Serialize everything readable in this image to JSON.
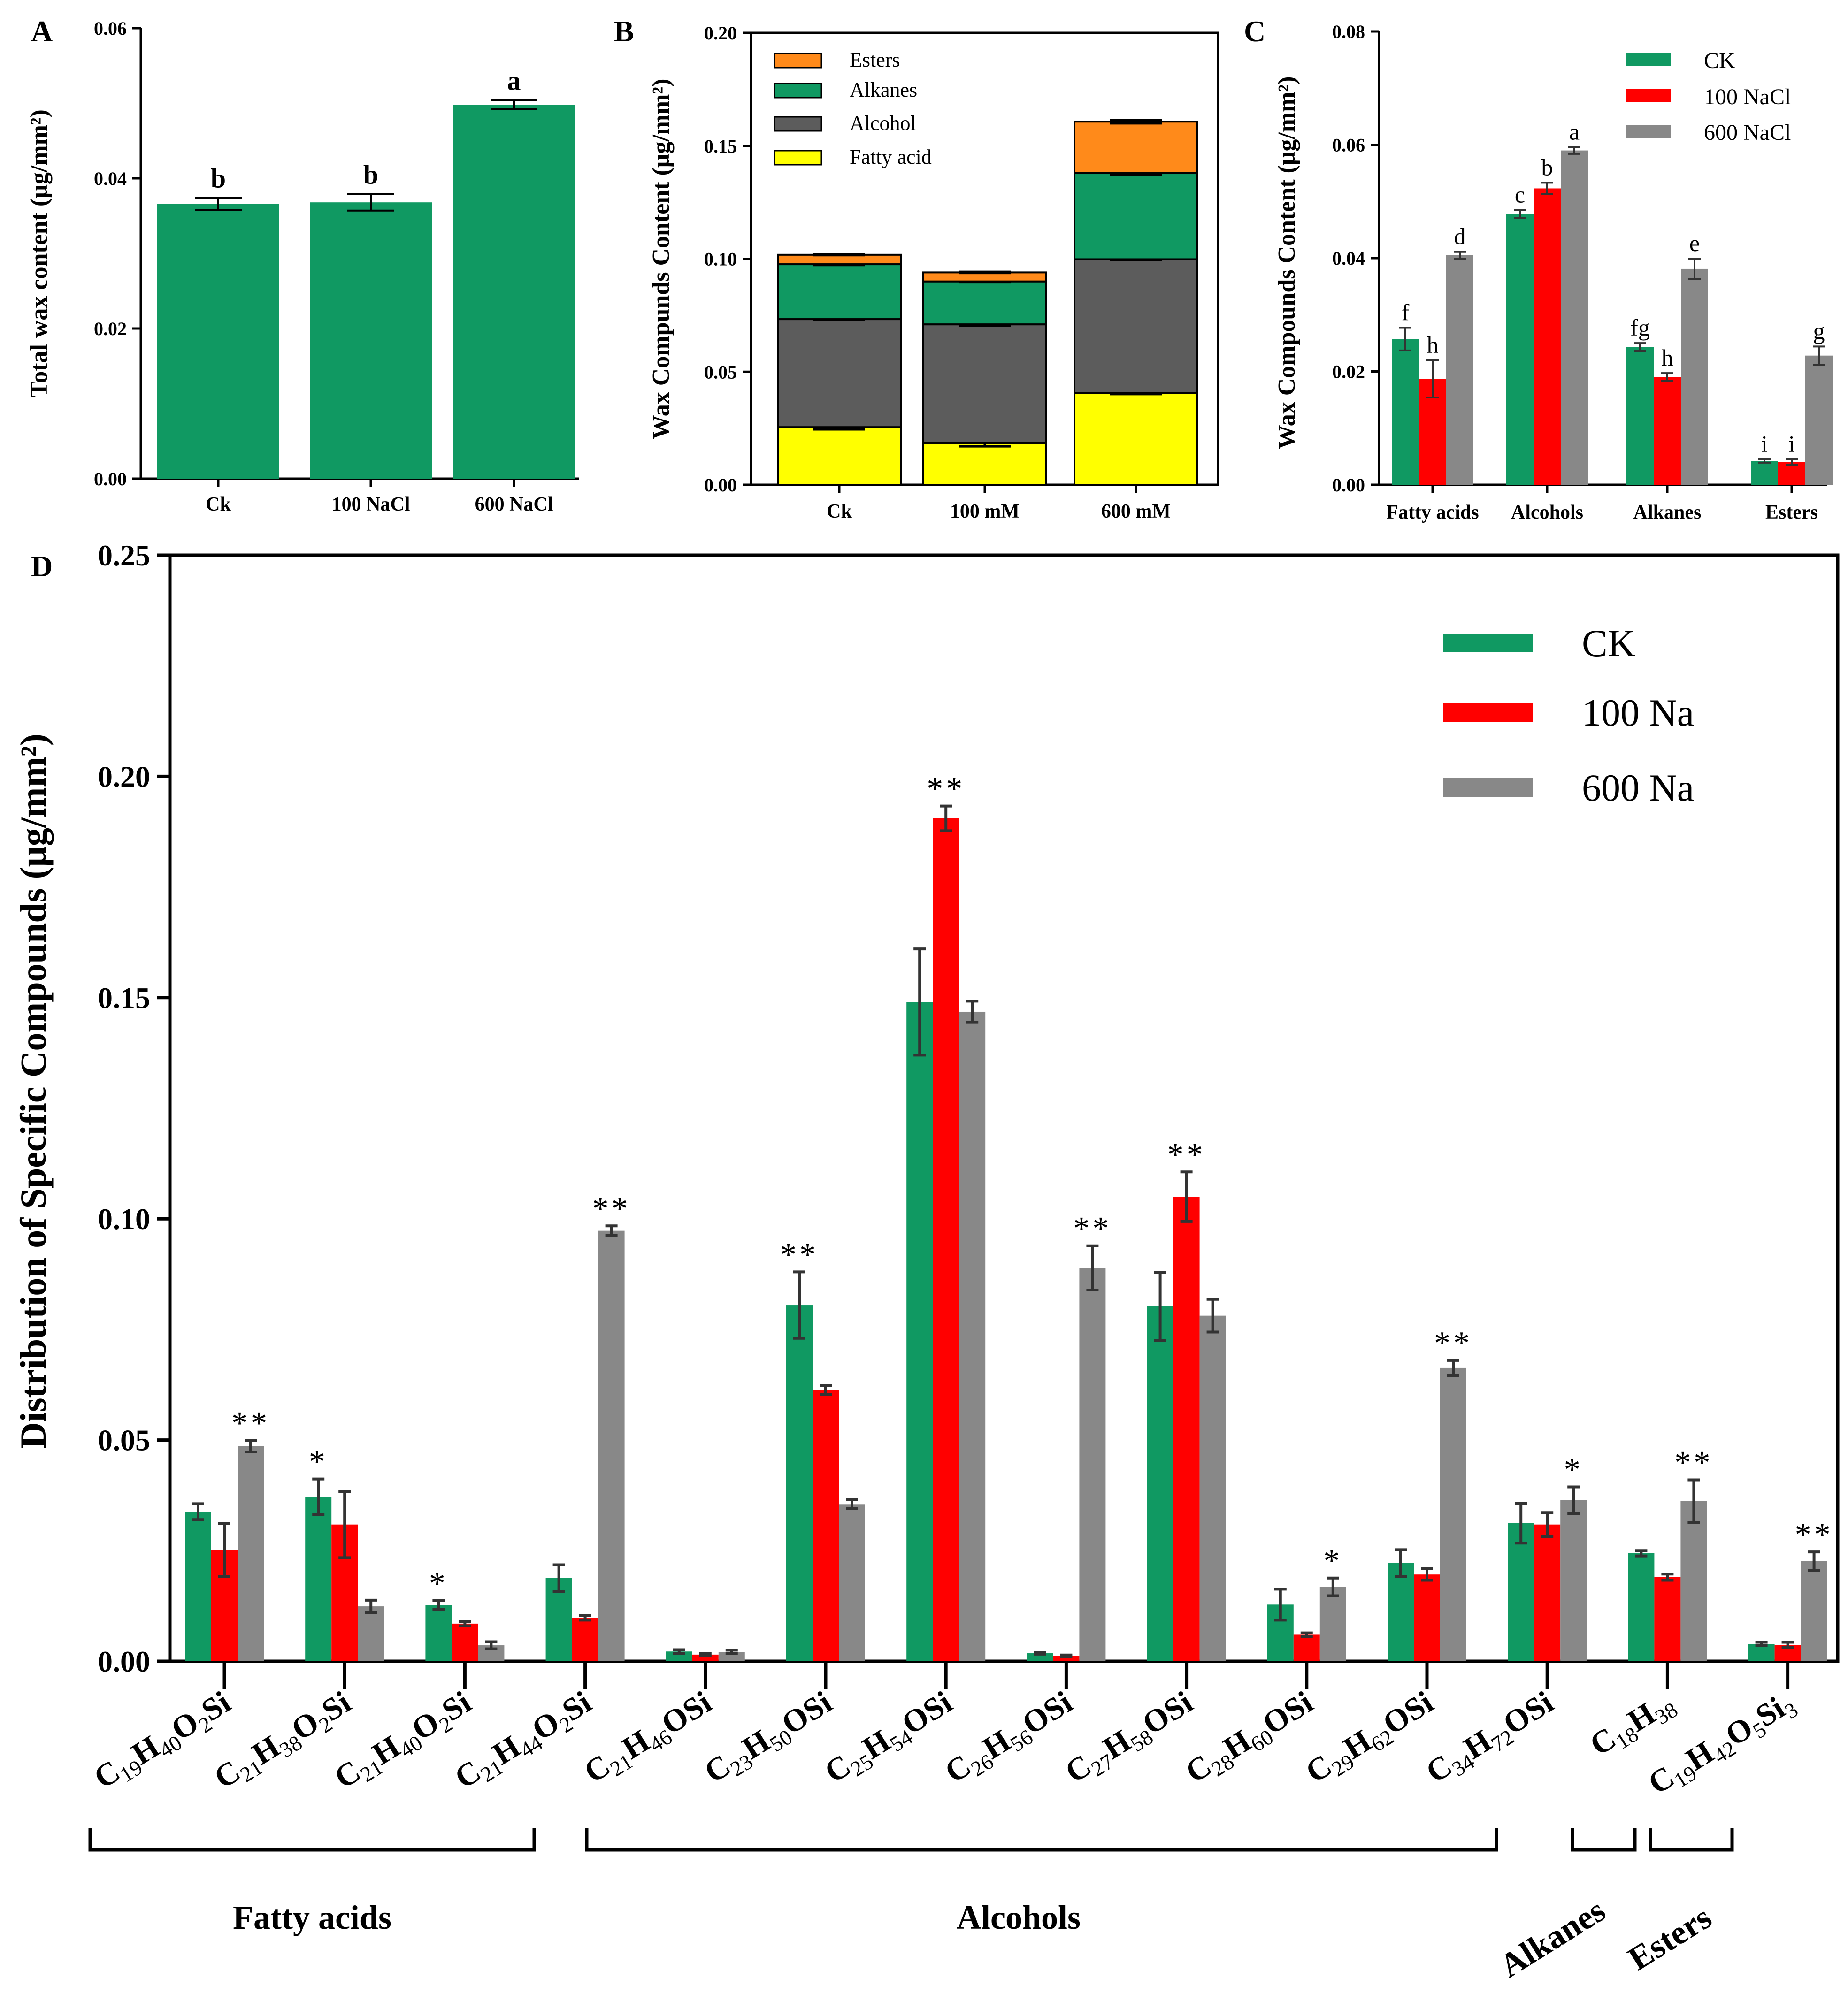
{
  "colors": {
    "green": "#109962",
    "red": "#ff0000",
    "gray": "#888888",
    "dark": "#5c5c5c",
    "yellow": "#ffff00",
    "orange": "#ff8a1a",
    "black": "#000000",
    "errorbar": "#333333"
  },
  "chart_data": [
    {
      "panel": "A",
      "type": "bar",
      "title": "",
      "xlabel": "",
      "ylabel": "Total wax content (μg/mm²)",
      "ylim": [
        0,
        0.06
      ],
      "yticks": [
        "0.00",
        "0.02",
        "0.04",
        "0.06"
      ],
      "categories": [
        "Ck",
        "100 NaCl",
        "600 NaCl"
      ],
      "values": [
        0.0366,
        0.0368,
        0.0498
      ],
      "errors": [
        0.0008,
        0.0011,
        0.0006
      ],
      "letters": [
        "b",
        "b",
        "a"
      ],
      "color": "green"
    },
    {
      "panel": "B",
      "type": "bar",
      "stacked": true,
      "ylabel": "Wax Compunds Content (μg/mm²)",
      "ylim": [
        0,
        0.2
      ],
      "yticks": [
        "0.00",
        "0.05",
        "0.10",
        "0.15",
        "0.20"
      ],
      "categories": [
        "Ck",
        "100 mM",
        "600 mM"
      ],
      "series": [
        {
          "name": "Fatty acid",
          "color": "yellow",
          "values": [
            0.0255,
            0.0185,
            0.0405
          ],
          "errors": [
            0.002,
            0.003,
            0.0008
          ]
        },
        {
          "name": "Alcohol",
          "color": "dark",
          "values": [
            0.0478,
            0.0525,
            0.0593
          ],
          "errors": [
            0.0008,
            0.001,
            0.0007
          ]
        },
        {
          "name": "Alkanes",
          "color": "green",
          "values": [
            0.0243,
            0.019,
            0.0381
          ],
          "errors": [
            0.0007,
            0.0008,
            0.0018
          ]
        },
        {
          "name": "Esters",
          "color": "orange",
          "values": [
            0.0042,
            0.004,
            0.0228
          ],
          "errors": [
            0.0004,
            0.0005,
            0.0015
          ]
        }
      ],
      "legend_order": [
        "Esters",
        "Alkanes",
        "Alcohol",
        "Fatty acid"
      ]
    },
    {
      "panel": "C",
      "type": "bar",
      "ylabel": "Wax Compounds Content (μg/mm²)",
      "ylim": [
        0,
        0.08
      ],
      "yticks": [
        "0.00",
        "0.02",
        "0.04",
        "0.06",
        "0.08"
      ],
      "categories": [
        "Fatty acids",
        "Alcohols",
        "Alkanes",
        "Esters"
      ],
      "series": [
        {
          "name": "CK",
          "color": "green",
          "values": [
            0.0257,
            0.0478,
            0.0243,
            0.0042
          ],
          "errors": [
            0.002,
            0.0007,
            0.0007,
            0.0003
          ],
          "letters": [
            "f",
            "c",
            "fg",
            "i"
          ]
        },
        {
          "name": "100 NaCl",
          "color": "red",
          "values": [
            0.0187,
            0.0523,
            0.019,
            0.004
          ],
          "errors": [
            0.0033,
            0.001,
            0.0007,
            0.0005
          ],
          "letters": [
            "h",
            "b",
            "h",
            "i"
          ]
        },
        {
          "name": "600 NaCl",
          "color": "gray",
          "values": [
            0.0405,
            0.059,
            0.0381,
            0.0228
          ],
          "errors": [
            0.0006,
            0.0006,
            0.0018,
            0.0016
          ],
          "letters": [
            "d",
            "a",
            "e",
            "g"
          ]
        }
      ]
    },
    {
      "panel": "D",
      "type": "bar",
      "ylabel": "Distribution of Specific Compounds (μg/mm²)",
      "ylim": [
        0,
        0.25
      ],
      "yticks": [
        "0.00",
        "0.05",
        "0.10",
        "0.15",
        "0.20",
        "0.25"
      ],
      "categories": [
        [
          [
            "C",
            0
          ],
          [
            "19",
            1
          ],
          [
            "H",
            0
          ],
          [
            "40",
            1
          ],
          [
            "O",
            0
          ],
          [
            "2",
            1
          ],
          [
            "Si",
            0
          ]
        ],
        [
          [
            "C",
            0
          ],
          [
            "21",
            1
          ],
          [
            "H",
            0
          ],
          [
            "38",
            1
          ],
          [
            "O",
            0
          ],
          [
            "2",
            1
          ],
          [
            "Si",
            0
          ]
        ],
        [
          [
            "C",
            0
          ],
          [
            "21",
            1
          ],
          [
            "H",
            0
          ],
          [
            "40",
            1
          ],
          [
            "O",
            0
          ],
          [
            "2",
            1
          ],
          [
            "Si",
            0
          ]
        ],
        [
          [
            "C",
            0
          ],
          [
            "21",
            1
          ],
          [
            "H",
            0
          ],
          [
            "44",
            1
          ],
          [
            "O",
            0
          ],
          [
            "2",
            1
          ],
          [
            "Si",
            0
          ]
        ],
        [
          [
            "C",
            0
          ],
          [
            "21",
            1
          ],
          [
            "H",
            0
          ],
          [
            "46",
            1
          ],
          [
            "OSi",
            0
          ]
        ],
        [
          [
            "C",
            0
          ],
          [
            "23",
            1
          ],
          [
            "H",
            0
          ],
          [
            "50",
            1
          ],
          [
            "OSi",
            0
          ]
        ],
        [
          [
            "C",
            0
          ],
          [
            "25",
            1
          ],
          [
            "H",
            0
          ],
          [
            "54",
            1
          ],
          [
            "OSi",
            0
          ]
        ],
        [
          [
            "C",
            0
          ],
          [
            "26",
            1
          ],
          [
            "H",
            0
          ],
          [
            "56",
            1
          ],
          [
            "OSi",
            0
          ]
        ],
        [
          [
            "C",
            0
          ],
          [
            "27",
            1
          ],
          [
            "H",
            0
          ],
          [
            "58",
            1
          ],
          [
            "OSi",
            0
          ]
        ],
        [
          [
            "C",
            0
          ],
          [
            "28",
            1
          ],
          [
            "H",
            0
          ],
          [
            "60",
            1
          ],
          [
            "OSi",
            0
          ]
        ],
        [
          [
            "C",
            0
          ],
          [
            "29",
            1
          ],
          [
            "H",
            0
          ],
          [
            "62",
            1
          ],
          [
            "OSi",
            0
          ]
        ],
        [
          [
            "C",
            0
          ],
          [
            "34",
            1
          ],
          [
            "H",
            0
          ],
          [
            "72",
            1
          ],
          [
            "OSi",
            0
          ]
        ],
        [
          [
            "C",
            0
          ],
          [
            "18",
            1
          ],
          [
            "H",
            0
          ],
          [
            "38",
            1
          ]
        ],
        [
          [
            "C",
            0
          ],
          [
            "19",
            1
          ],
          [
            "H",
            0
          ],
          [
            "42",
            1
          ],
          [
            "O",
            0
          ],
          [
            "5",
            1
          ],
          [
            "Si",
            0
          ],
          [
            "3",
            1
          ]
        ]
      ],
      "series": [
        {
          "name": "CK",
          "color": "green",
          "values": [
            0.0338,
            0.0372,
            0.0127,
            0.0188,
            0.0022,
            0.0805,
            0.149,
            0.0018,
            0.0802,
            0.0128,
            0.0222,
            0.0312,
            0.0244,
            0.0039
          ],
          "errors": [
            0.0018,
            0.004,
            0.001,
            0.003,
            0.0004,
            0.0075,
            0.012,
            0.0002,
            0.0077,
            0.0035,
            0.003,
            0.0045,
            0.0006,
            0.0004
          ]
        },
        {
          "name": "100 Na",
          "color": "red",
          "values": [
            0.0251,
            0.0309,
            0.0085,
            0.0098,
            0.0015,
            0.0613,
            0.1905,
            0.0012,
            0.105,
            0.006,
            0.0196,
            0.0309,
            0.019,
            0.0037
          ],
          "errors": [
            0.006,
            0.0075,
            0.0005,
            0.0005,
            0.0003,
            0.001,
            0.0028,
            0.0002,
            0.0056,
            0.0004,
            0.0013,
            0.0027,
            0.0007,
            0.0006
          ]
        },
        {
          "name": "600 Na",
          "color": "gray",
          "values": [
            0.0486,
            0.0124,
            0.0036,
            0.0973,
            0.0021,
            0.0355,
            0.1468,
            0.0889,
            0.0781,
            0.0168,
            0.0663,
            0.0364,
            0.0362,
            0.0226
          ],
          "errors": [
            0.0013,
            0.0014,
            0.0008,
            0.0011,
            0.0004,
            0.001,
            0.0024,
            0.005,
            0.0037,
            0.002,
            0.0017,
            0.003,
            0.0048,
            0.0021
          ]
        }
      ],
      "significance": [
        "**",
        "*",
        "*",
        "**",
        "",
        "**",
        "**",
        "**",
        "**",
        "*",
        "**",
        "*",
        "**",
        "**"
      ],
      "significance_on": [
        "600 Na",
        "CK",
        "CK",
        "600 Na",
        "",
        "CK",
        "100 Na",
        "600 Na",
        "100 Na",
        "600 Na",
        "600 Na",
        "600 Na",
        "600 Na",
        "600 Na"
      ],
      "groups": [
        {
          "label": "Fatty acids",
          "from": 0,
          "to": 3
        },
        {
          "label": "Alcohols",
          "from": 4,
          "to": 11
        },
        {
          "label": "Alkanes",
          "from": 12,
          "to": 12
        },
        {
          "label": "Esters",
          "from": 13,
          "to": 13
        }
      ]
    }
  ],
  "panels": {
    "a": "A",
    "b": "B",
    "c": "C",
    "d": "D"
  }
}
